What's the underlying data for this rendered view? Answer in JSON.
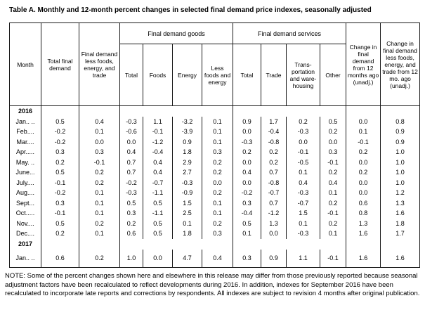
{
  "title": "Table A. Monthly and 12-month percent changes in selected final demand price indexes, seasonally adjusted",
  "table": {
    "columns": {
      "month": "Month",
      "total_final_demand": "Total final demand",
      "less_fet": "Final demand less foods, energy, and trade",
      "goods_group": "Final demand goods",
      "goods": [
        "Total",
        "Foods",
        "Energy",
        "Less foods and energy"
      ],
      "services_group": "Final demand services",
      "services": [
        "Total",
        "Trade",
        "Trans- portation and ware- housing",
        "Other"
      ],
      "change_12mo": "Change in final demand from 12 months ago (unadj.)",
      "change_less": "Change in final demand less foods, energy, and trade from 12 mo. ago (unadj.)"
    },
    "rows": [
      {
        "type": "year",
        "label": "2016"
      },
      {
        "type": "month",
        "label": "Jan.. ..",
        "values": [
          "0.5",
          "0.4",
          "-0.3",
          "1.1",
          "-3.2",
          "0.1",
          "0.9",
          "1.7",
          "0.2",
          "0.5",
          "0.0",
          "0.8"
        ]
      },
      {
        "type": "month",
        "label": "Feb....",
        "values": [
          "-0.2",
          "0.1",
          "-0.6",
          "-0.1",
          "-3.9",
          "0.1",
          "0.0",
          "-0.4",
          "-0.3",
          "0.2",
          "0.1",
          "0.9"
        ]
      },
      {
        "type": "month",
        "label": "Mar....",
        "values": [
          "-0.2",
          "0.0",
          "0.0",
          "-1.2",
          "0.9",
          "0.1",
          "-0.3",
          "-0.8",
          "0.0",
          "0.0",
          "-0.1",
          "0.9"
        ]
      },
      {
        "type": "month",
        "label": "Apr.....",
        "values": [
          "0.3",
          "0.3",
          "0.4",
          "-0.4",
          "1.8",
          "0.3",
          "0.2",
          "0.2",
          "-0.1",
          "0.3",
          "0.2",
          "1.0"
        ]
      },
      {
        "type": "month",
        "label": "May. ..",
        "values": [
          "0.2",
          "-0.1",
          "0.7",
          "0.4",
          "2.9",
          "0.2",
          "0.0",
          "0.2",
          "-0.5",
          "-0.1",
          "0.0",
          "1.0"
        ]
      },
      {
        "type": "month",
        "label": "June...",
        "values": [
          "0.5",
          "0.2",
          "0.7",
          "0.4",
          "2.7",
          "0.2",
          "0.4",
          "0.7",
          "0.1",
          "0.2",
          "0.2",
          "1.0"
        ]
      },
      {
        "type": "month",
        "label": "July....",
        "values": [
          "-0.1",
          "0.2",
          "-0.2",
          "-0.7",
          "-0.3",
          "0.0",
          "0.0",
          "-0.8",
          "0.4",
          "0.4",
          "0.0",
          "1.0"
        ]
      },
      {
        "type": "month",
        "label": "Aug....",
        "values": [
          "-0.2",
          "0.1",
          "-0.3",
          "-1.1",
          "-0.9",
          "0.2",
          "-0.2",
          "-0.7",
          "-0.3",
          "0.1",
          "0.0",
          "1.2"
        ]
      },
      {
        "type": "month",
        "label": "Sept...",
        "values": [
          "0.3",
          "0.1",
          "0.5",
          "0.5",
          "1.5",
          "0.1",
          "0.3",
          "0.7",
          "-0.7",
          "0.2",
          "0.6",
          "1.3"
        ]
      },
      {
        "type": "month",
        "label": "Oct.....",
        "values": [
          "-0.1",
          "0.1",
          "0.3",
          "-1.1",
          "2.5",
          "0.1",
          "-0.4",
          "-1.2",
          "1.5",
          "-0.1",
          "0.8",
          "1.6"
        ]
      },
      {
        "type": "month",
        "label": "Nov....",
        "values": [
          "0.5",
          "0.2",
          "0.2",
          "0.5",
          "0.1",
          "0.2",
          "0.5",
          "1.3",
          "0.1",
          "0.2",
          "1.3",
          "1.8"
        ]
      },
      {
        "type": "month",
        "label": "Dec....",
        "values": [
          "0.2",
          "0.1",
          "0.6",
          "0.5",
          "1.8",
          "0.3",
          "0.1",
          "0.0",
          "-0.3",
          "0.1",
          "1.6",
          "1.7"
        ]
      },
      {
        "type": "year",
        "label": "2017"
      },
      {
        "type": "month",
        "label": "Jan.. ..",
        "values": [
          "0.6",
          "0.2",
          "1.0",
          "0.0",
          "4.7",
          "0.4",
          "0.3",
          "0.9",
          "1.1",
          "-0.1",
          "1.6",
          "1.6"
        ]
      }
    ]
  },
  "note": "NOTE: Some of the percent changes shown here and elsewhere in this release may differ from those previously reported because seasonal adjustment factors have been recalculated to reflect developments during 2016. In addition, indexes for September 2016 have been recalculated to incorporate late reports and corrections by respondents. All indexes are subject to revision 4 months after original publication."
}
